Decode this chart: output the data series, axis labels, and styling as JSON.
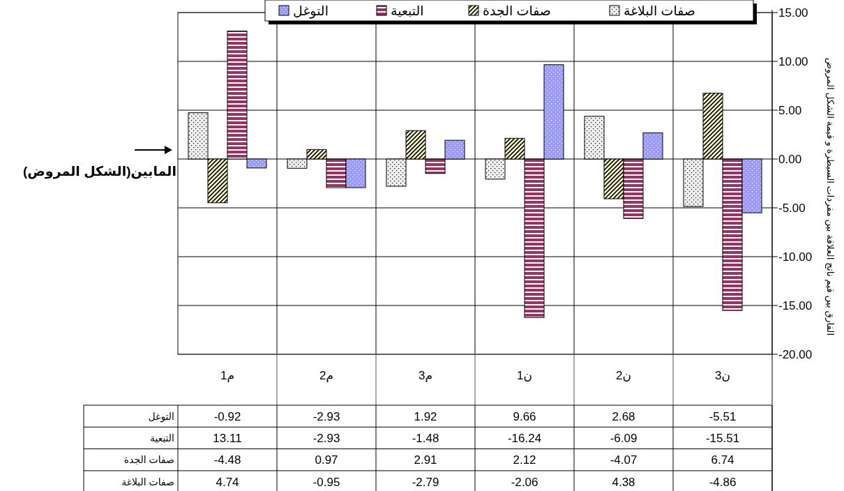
{
  "chart_data": {
    "type": "bar",
    "ylabel": "الفارق بين قيم ناتج العلاقة بين مفردات السيطرة و قيمة الشكل المروض",
    "categories": [
      "م1",
      "م2",
      "م3",
      "ن1",
      "ن2",
      "ن3"
    ],
    "series": [
      {
        "name": "صفات البلاغة",
        "color": "#eeeeee",
        "values": [
          4.74,
          -0.95,
          -2.79,
          -2.06,
          4.38,
          -4.86
        ]
      },
      {
        "name": "صفات الجدة",
        "color": "#ffffcc",
        "values": [
          -4.48,
          0.97,
          2.91,
          2.12,
          -4.07,
          6.74
        ]
      },
      {
        "name": "التبعية",
        "color": "#993366",
        "values": [
          13.11,
          -2.93,
          -1.48,
          -16.24,
          -6.09,
          -15.51
        ]
      },
      {
        "name": "التوغل",
        "color": "#9999ff",
        "values": [
          -0.92,
          -2.93,
          1.92,
          9.66,
          2.68,
          -5.51
        ]
      }
    ],
    "ylim": [
      -20,
      15
    ],
    "yticks": [
      {
        "value": -20,
        "label": "-20.00"
      },
      {
        "value": -15,
        "label": "-15.00"
      },
      {
        "value": -10,
        "label": "-10.00"
      },
      {
        "value": -5,
        "label": "-5.00"
      },
      {
        "value": 0,
        "label": "0.00"
      },
      {
        "value": 5,
        "label": "5.00"
      },
      {
        "value": 10,
        "label": "10.00"
      },
      {
        "value": 15,
        "label": "15.00"
      }
    ],
    "grid": true,
    "legend": "top",
    "data_labels": true,
    "annotations": [
      "المابين(الشكل المروض)"
    ]
  }
}
